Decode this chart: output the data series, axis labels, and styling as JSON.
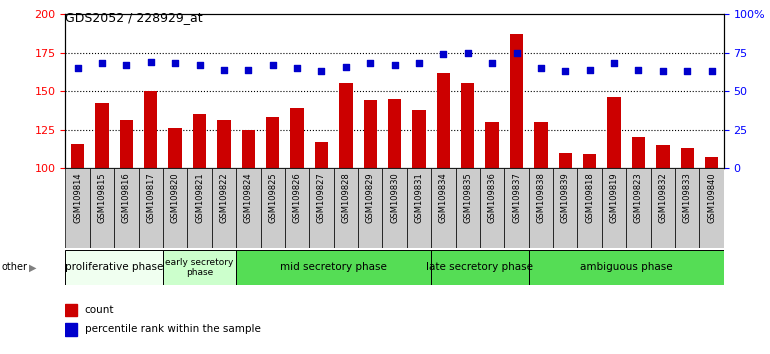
{
  "title": "GDS2052 / 228929_at",
  "samples": [
    "GSM109814",
    "GSM109815",
    "GSM109816",
    "GSM109817",
    "GSM109820",
    "GSM109821",
    "GSM109822",
    "GSM109824",
    "GSM109825",
    "GSM109826",
    "GSM109827",
    "GSM109828",
    "GSM109829",
    "GSM109830",
    "GSM109831",
    "GSM109834",
    "GSM109835",
    "GSM109836",
    "GSM109837",
    "GSM109838",
    "GSM109839",
    "GSM109818",
    "GSM109819",
    "GSM109823",
    "GSM109832",
    "GSM109833",
    "GSM109840"
  ],
  "counts": [
    116,
    142,
    131,
    150,
    126,
    135,
    131,
    125,
    133,
    139,
    117,
    155,
    144,
    145,
    138,
    162,
    155,
    130,
    187,
    130,
    110,
    109,
    146,
    120,
    115,
    113,
    107
  ],
  "percentiles": [
    65,
    68,
    67,
    69,
    68,
    67,
    64,
    64,
    67,
    65,
    63,
    66,
    68,
    67,
    68,
    74,
    75,
    68,
    75,
    65,
    63,
    64,
    68,
    64,
    63,
    63,
    63
  ],
  "ylim_left": [
    100,
    200
  ],
  "ylim_right": [
    0,
    100
  ],
  "yticks_left": [
    100,
    125,
    150,
    175,
    200
  ],
  "yticks_right": [
    0,
    25,
    50,
    75,
    100
  ],
  "ytick_labels_right": [
    "0",
    "25",
    "50",
    "75",
    "100%"
  ],
  "bar_color": "#cc0000",
  "dot_color": "#0000cc",
  "phases": [
    {
      "label": "proliferative phase",
      "start": 0,
      "end": 4,
      "color": "#f0fff0"
    },
    {
      "label": "early secretory\nphase",
      "start": 4,
      "end": 7,
      "color": "#ccffcc"
    },
    {
      "label": "mid secretory phase",
      "start": 7,
      "end": 15,
      "color": "#55dd55"
    },
    {
      "label": "late secretory phase",
      "start": 15,
      "end": 19,
      "color": "#55dd55"
    },
    {
      "label": "ambiguous phase",
      "start": 19,
      "end": 27,
      "color": "#55dd55"
    }
  ],
  "bg_color": "#ffffff",
  "tick_bg_color": "#cccccc",
  "legend_count_color": "#cc0000",
  "legend_pct_color": "#0000cc",
  "grid_yticks": [
    125,
    150,
    175
  ]
}
